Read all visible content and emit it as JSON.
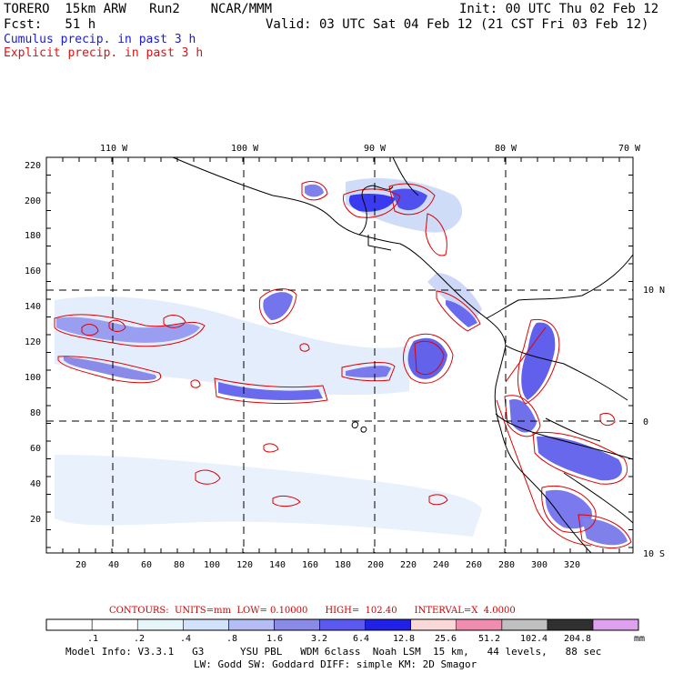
{
  "header": {
    "model": "TORERO  15km ARW   Run2    NCAR/MMM",
    "init": "Init: 00 UTC Thu 02 Feb 12",
    "fcst": "Fcst:   51 h",
    "valid": "Valid: 03 UTC Sat 04 Feb 12 (21 CST Fri 03 Feb 12)",
    "legend_cumulus": "Cumulus precip. in past 3 h",
    "legend_explicit": "Explicit precip. in past 3 h"
  },
  "map": {
    "top_lon_labels": [
      "110 W",
      "100 W",
      "90 W",
      "80 W",
      "70 W"
    ],
    "right_lat_labels": [
      "10 N",
      "0",
      "10 S"
    ],
    "y_grid_ticks": [
      "220",
      "200",
      "180",
      "160",
      "140",
      "120",
      "100",
      "80",
      "60",
      "40",
      "20"
    ],
    "x_grid_ticks": [
      "20",
      "40",
      "60",
      "80",
      "100",
      "120",
      "140",
      "160",
      "180",
      "200",
      "220",
      "240",
      "260",
      "280",
      "300",
      "320"
    ],
    "colors": {
      "coast": "#000000",
      "cumulus": "#4a4ae0",
      "explicit": "#e00000",
      "grid": "#000000"
    }
  },
  "contours_line": "CONTOURS:  UNITS=mm  LOW= 0.10000      HIGH=  102.40      INTERVAL=X  4.0000",
  "colorbar": {
    "labels": [
      ".1",
      ".2",
      ".4",
      ".8",
      "1.6",
      "3.2",
      "6.4",
      "12.8",
      "25.6",
      "51.2",
      "102.4",
      "204.8"
    ],
    "unit": "mm",
    "colors": [
      "#ffffff",
      "#ffffff",
      "#ffffff",
      "#e6f6f8",
      "#d2e2fa",
      "#b4bef4",
      "#8a8ae8",
      "#5a5af0",
      "#2020e6",
      "#fbd8d8",
      "#f08cb0",
      "#c0c0c0",
      "#303030",
      "#e0a0f0"
    ]
  },
  "model_info": {
    "line1": "Model Info: V3.3.1   G3      YSU PBL   WDM 6class  Noah LSM  15 km,   44 levels,   88 sec",
    "line2": "LW: Godd SW: Goddard DIFF: simple KM: 2D Smagor"
  }
}
